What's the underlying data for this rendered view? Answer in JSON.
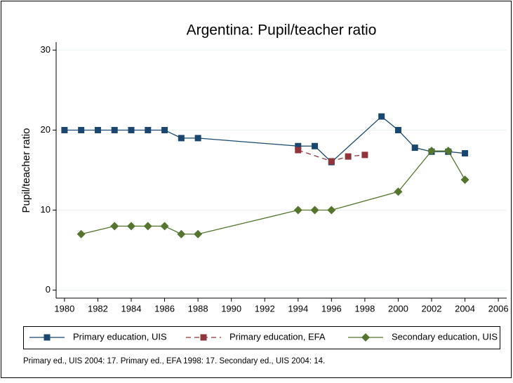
{
  "chart_data": {
    "type": "line",
    "title": "Argentina: Pupil/teacher ratio",
    "y_label": "Pupil/teacher ratio",
    "note": "Primary ed., UIS 2004: 17. Primary ed., EFA 1998: 17. Secondary ed., UIS 2004: 14.",
    "xlim": [
      1979.5,
      2006.5
    ],
    "xticks": [
      1980,
      1982,
      1984,
      1986,
      1988,
      1990,
      1992,
      1994,
      1996,
      1998,
      2000,
      2002,
      2004,
      2006
    ],
    "ylim": [
      -1,
      31
    ],
    "yticks": [
      0,
      10,
      20,
      30
    ],
    "grid": true,
    "series": [
      {
        "name": "Primary education, UIS",
        "color": "#1a476f",
        "marker": "square",
        "dash": false,
        "x": [
          1980,
          1981,
          1982,
          1983,
          1984,
          1985,
          1986,
          1987,
          1988,
          1994,
          1995,
          1996,
          1999,
          2000,
          2001,
          2002,
          2003,
          2004
        ],
        "values": [
          20,
          20,
          20,
          20,
          20,
          20,
          20,
          19,
          19,
          18,
          18,
          16,
          21.7,
          20,
          17.8,
          17.3,
          17.3,
          17.1
        ]
      },
      {
        "name": "Primary education, EFA",
        "color": "#90353b",
        "marker": "square",
        "dash": true,
        "x": [
          1994,
          1996,
          1997,
          1998
        ],
        "values": [
          17.5,
          16.1,
          16.7,
          16.9
        ]
      },
      {
        "name": "Secondary education, UIS",
        "color": "#55752f",
        "marker": "diamond",
        "dash": false,
        "x": [
          1981,
          1983,
          1984,
          1985,
          1986,
          1987,
          1988,
          1994,
          1995,
          1996,
          2000,
          2002,
          2003,
          2004
        ],
        "values": [
          7,
          8,
          8,
          8,
          8,
          7,
          7,
          10,
          10,
          10,
          12.3,
          17.4,
          17.4,
          13.8
        ]
      }
    ]
  }
}
